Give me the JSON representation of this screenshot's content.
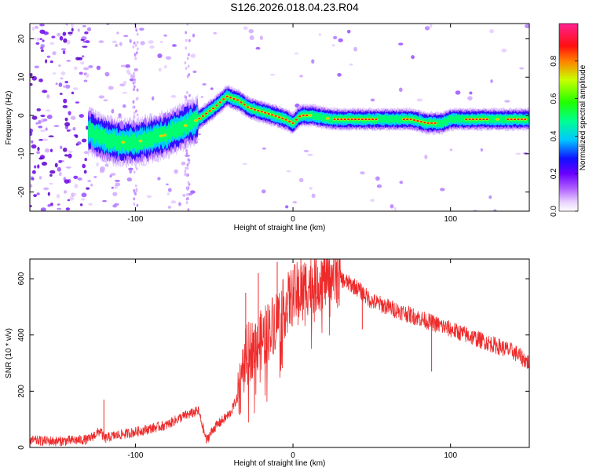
{
  "figure": {
    "title": "S126.2026.018.04.23.R04"
  },
  "chart_data": [
    {
      "type": "heatmap",
      "title": "",
      "xlabel": "Height of straight line (km)",
      "ylabel": "Frequency (Hz)",
      "xlim": [
        -167,
        150
      ],
      "ylim": [
        -25,
        24
      ],
      "x_ticks": [
        -100,
        0,
        100
      ],
      "y_ticks": [
        -20,
        -10,
        0,
        10,
        20
      ],
      "colorbar": {
        "label": "Normalized spectral amplitude",
        "range": [
          0,
          1
        ],
        "ticks": [
          0.0,
          0.2,
          0.4,
          0.6,
          0.8
        ],
        "tick_labels": [
          "0.0",
          "0.2",
          "0.4",
          "0.6",
          "0.8"
        ],
        "colors": [
          "#ffffff",
          "#c890ff",
          "#7a00ff",
          "#0000ff",
          "#00e0ff",
          "#00ff40",
          "#c8ff00",
          "#ff2020",
          "#ff2080"
        ]
      },
      "ridge": {
        "description_points_x": [
          -130,
          -120,
          -110,
          -100,
          -90,
          -80,
          -70,
          -60,
          -50,
          -42,
          -35,
          -28,
          -20,
          -12,
          -5,
          0,
          5,
          12,
          25,
          50,
          75,
          85,
          95,
          100,
          110,
          130,
          150
        ],
        "frequency_hz": [
          -4,
          -6,
          -7,
          -7,
          -6,
          -5,
          -3,
          -1,
          2,
          5,
          4,
          2,
          1,
          0,
          -1,
          -2,
          0,
          0,
          -1,
          -1,
          -1,
          -2,
          -2,
          -1,
          -1,
          -1,
          -1
        ]
      }
    },
    {
      "type": "line",
      "title": "",
      "xlabel": "Height of straight line (km)",
      "ylabel": "SNR (10 * v/v)",
      "xlim": [
        -167,
        150
      ],
      "ylim": [
        0,
        670
      ],
      "x_ticks": [
        -100,
        0,
        100
      ],
      "y_ticks": [
        0,
        200,
        400,
        600
      ],
      "series": [
        {
          "name": "SNR",
          "color": "#ee2a2a",
          "x": [
            -167,
            -150,
            -130,
            -122,
            -120,
            -115,
            -100,
            -80,
            -70,
            -60,
            -55,
            -50,
            -40,
            -35,
            -30,
            -25,
            -20,
            -15,
            -10,
            -5,
            0,
            5,
            10,
            15,
            20,
            25,
            30,
            40,
            50,
            60,
            70,
            80,
            90,
            100,
            110,
            120,
            130,
            140,
            150
          ],
          "y": [
            25,
            22,
            28,
            60,
            30,
            40,
            55,
            80,
            110,
            130,
            25,
            70,
            120,
            180,
            320,
            360,
            380,
            420,
            460,
            500,
            540,
            560,
            580,
            590,
            600,
            610,
            600,
            570,
            520,
            500,
            480,
            460,
            440,
            420,
            400,
            380,
            360,
            340,
            300
          ]
        }
      ],
      "spikes": [
        {
          "x": -120,
          "y": 170
        },
        {
          "x": -30,
          "y": 550
        },
        {
          "x": -22,
          "y": 620
        },
        {
          "x": -10,
          "y": 660
        },
        {
          "x": 5,
          "y": 670
        },
        {
          "x": 18,
          "y": 665
        },
        {
          "x": 44,
          "y": 420
        },
        {
          "x": 88,
          "y": 270
        }
      ]
    }
  ]
}
